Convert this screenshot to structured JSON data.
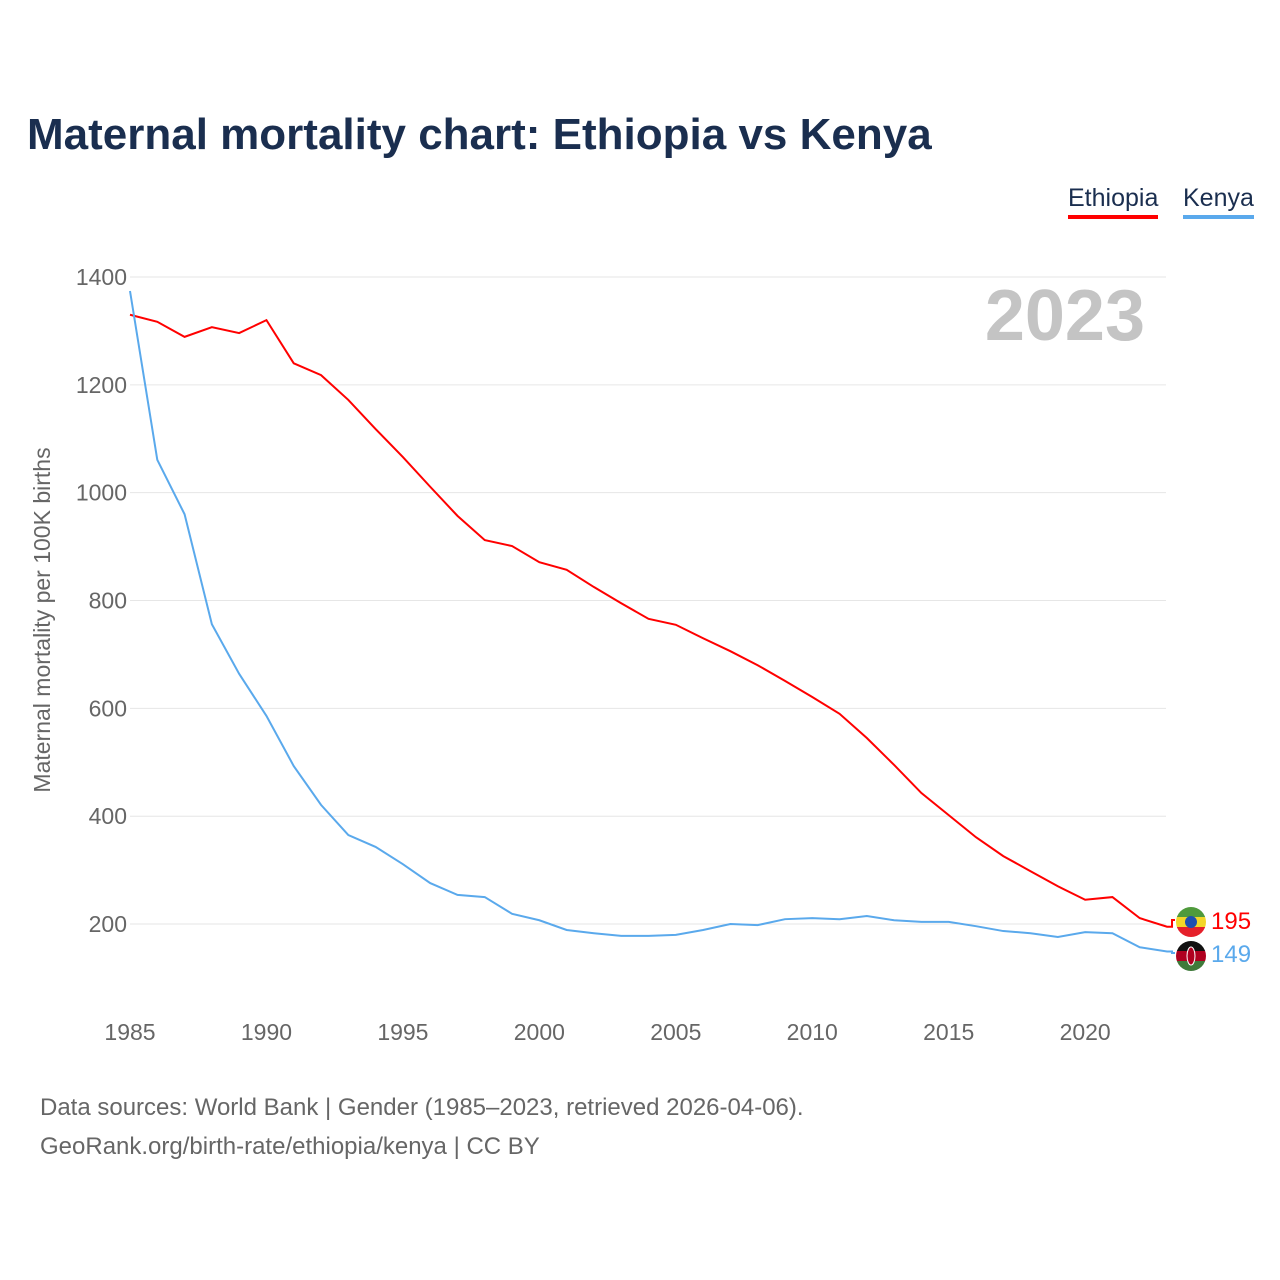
{
  "chart_data": {
    "type": "line",
    "title": "Maternal mortality chart: Ethiopia vs Kenya",
    "ylabel": "Maternal mortality per 100K births",
    "xlabel": "",
    "year_badge": "2023",
    "ylim": [
      100,
      1400
    ],
    "xlim": [
      1985,
      2023
    ],
    "yticks": [
      200,
      400,
      600,
      800,
      1000,
      1200,
      1400
    ],
    "xticks": [
      1985,
      1990,
      1995,
      2000,
      2005,
      2010,
      2015,
      2020
    ],
    "grid": true,
    "legend_position": "top-right",
    "x": [
      1985,
      1986,
      1987,
      1988,
      1989,
      1990,
      1991,
      1992,
      1993,
      1994,
      1995,
      1996,
      1997,
      1998,
      1999,
      2000,
      2001,
      2002,
      2003,
      2004,
      2005,
      2006,
      2007,
      2008,
      2009,
      2010,
      2011,
      2012,
      2013,
      2014,
      2015,
      2016,
      2017,
      2018,
      2019,
      2020,
      2021,
      2022,
      2023
    ],
    "series": [
      {
        "name": "Ethiopia",
        "color": "#ff0000",
        "end_label": "195",
        "values": [
          1330,
          1317,
          1289,
          1307,
          1296,
          1320,
          1240,
          1218,
          1172,
          1118,
          1066,
          1011,
          957,
          912,
          901,
          871,
          857,
          825,
          795,
          766,
          755,
          730,
          706,
          680,
          651,
          621,
          590,
          545,
          495,
          443,
          402,
          361,
          326,
          298,
          270,
          245,
          250,
          211,
          195
        ]
      },
      {
        "name": "Kenya",
        "color": "#5aa9ec",
        "end_label": "149",
        "values": [
          1374,
          1061,
          960,
          756,
          664,
          586,
          493,
          421,
          365,
          343,
          311,
          276,
          254,
          250,
          219,
          207,
          189,
          183,
          178,
          178,
          180,
          189,
          200,
          198,
          209,
          211,
          209,
          215,
          207,
          204,
          204,
          196,
          187,
          183,
          176,
          185,
          183,
          157,
          149
        ]
      }
    ]
  },
  "footer": {
    "line1": "Data sources: World Bank | Gender (1985–2023, retrieved 2026-04-06).",
    "line2": "GeoRank.org/birth-rate/ethiopia/kenya | CC BY"
  }
}
